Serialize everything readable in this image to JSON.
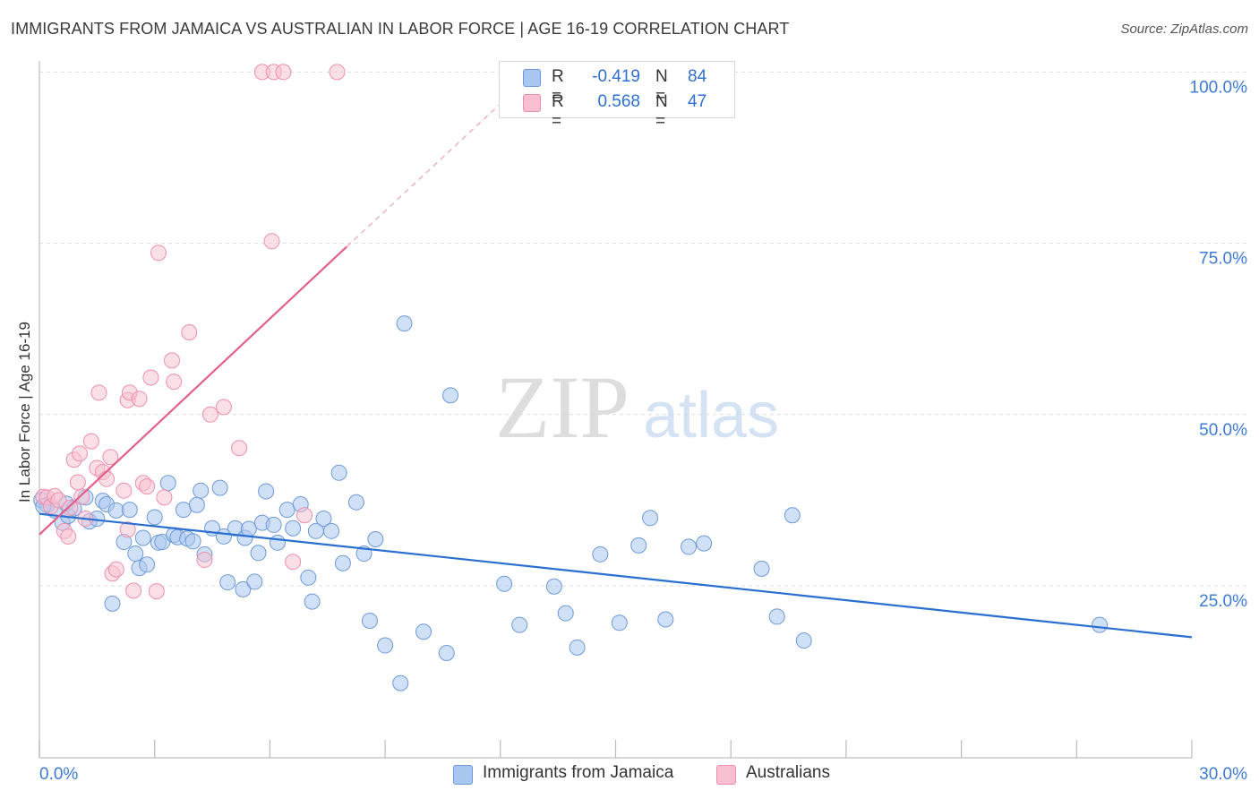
{
  "title": "IMMIGRANTS FROM JAMAICA VS AUSTRALIAN IN LABOR FORCE | AGE 16-19 CORRELATION CHART",
  "source": "Source: ZipAtlas.com",
  "watermark": {
    "zip": "ZIP",
    "atlas": "atlas"
  },
  "legend": {
    "jamaica": {
      "r_label": "R =",
      "r_value": "-0.419",
      "n_label": "N =",
      "n_value": "84"
    },
    "australians": {
      "r_label": "R =",
      "r_value": "0.568",
      "n_label": "N =",
      "n_value": "47"
    }
  },
  "bottom_legend": {
    "jamaica": "Immigrants from Jamaica",
    "australians": "Australians"
  },
  "colors": {
    "jamaica_fill": "#a9c6f0",
    "jamaica_stroke": "#6f9ad8",
    "jamaica_line": "#2a6fcf",
    "aus_fill": "#f7bfd0",
    "aus_stroke": "#ee8fae",
    "aus_line": "#e0608a",
    "tick_text": "#3d7bd6",
    "grid": "#dddddd"
  },
  "chart_data": {
    "type": "scatter",
    "title": "IMMIGRANTS FROM JAMAICA VS AUSTRALIAN IN LABOR FORCE | AGE 16-19 CORRELATION CHART",
    "xlabel": "",
    "ylabel": "In Labor Force | Age 16-19",
    "xlim": [
      0,
      30
    ],
    "ylim": [
      0,
      102
    ],
    "x_tick_labels": [
      {
        "value": 0,
        "label": "0.0%"
      },
      {
        "value": 30,
        "label": "30.0%"
      }
    ],
    "y_tick_labels": [
      {
        "value": 25,
        "label": "25.0%"
      },
      {
        "value": 50,
        "label": "50.0%"
      },
      {
        "value": 75,
        "label": "75.0%"
      },
      {
        "value": 100,
        "label": "100.0%"
      }
    ],
    "grid": "horizontal dashed",
    "legend_placement": "top-center",
    "series": [
      {
        "name": "Immigrants from Jamaica",
        "R": -0.419,
        "N": 84,
        "trend": {
          "x": [
            0,
            30
          ],
          "y": [
            35.5,
            17.5
          ]
        },
        "points": [
          [
            0.05,
            37.5
          ],
          [
            0.2,
            36.8
          ],
          [
            0.4,
            36.0
          ],
          [
            0.6,
            34.2
          ],
          [
            0.7,
            37.0
          ],
          [
            0.75,
            35.2
          ],
          [
            0.9,
            36.3
          ],
          [
            1.2,
            37.9
          ],
          [
            1.3,
            34.4
          ],
          [
            1.5,
            34.8
          ],
          [
            1.65,
            37.4
          ],
          [
            1.75,
            36.9
          ],
          [
            1.9,
            22.4
          ],
          [
            2.0,
            36.0
          ],
          [
            2.2,
            31.4
          ],
          [
            2.35,
            36.1
          ],
          [
            2.5,
            29.7
          ],
          [
            2.6,
            27.6
          ],
          [
            2.7,
            32.0
          ],
          [
            2.8,
            28.1
          ],
          [
            3.0,
            35.0
          ],
          [
            3.1,
            31.3
          ],
          [
            3.2,
            31.4
          ],
          [
            3.35,
            40.0
          ],
          [
            3.5,
            32.4
          ],
          [
            3.6,
            32.1
          ],
          [
            3.75,
            36.1
          ],
          [
            3.85,
            31.9
          ],
          [
            4.0,
            31.5
          ],
          [
            4.1,
            36.8
          ],
          [
            4.2,
            38.9
          ],
          [
            4.3,
            29.6
          ],
          [
            4.5,
            33.4
          ],
          [
            4.7,
            39.3
          ],
          [
            4.8,
            32.2
          ],
          [
            4.9,
            25.5
          ],
          [
            5.1,
            33.4
          ],
          [
            5.3,
            24.5
          ],
          [
            5.35,
            32.0
          ],
          [
            5.45,
            33.3
          ],
          [
            5.6,
            25.6
          ],
          [
            5.7,
            29.8
          ],
          [
            5.8,
            34.2
          ],
          [
            5.9,
            38.8
          ],
          [
            6.1,
            33.9
          ],
          [
            6.2,
            31.3
          ],
          [
            6.45,
            36.1
          ],
          [
            6.6,
            33.4
          ],
          [
            6.8,
            36.9
          ],
          [
            7.0,
            26.2
          ],
          [
            7.1,
            22.7
          ],
          [
            7.2,
            33.0
          ],
          [
            7.4,
            34.8
          ],
          [
            7.6,
            33.0
          ],
          [
            7.8,
            41.5
          ],
          [
            7.9,
            28.3
          ],
          [
            8.25,
            37.2
          ],
          [
            8.45,
            29.7
          ],
          [
            8.6,
            19.9
          ],
          [
            8.75,
            31.8
          ],
          [
            9.0,
            16.3
          ],
          [
            9.4,
            10.8
          ],
          [
            9.5,
            63.3
          ],
          [
            10.0,
            18.3
          ],
          [
            10.6,
            15.2
          ],
          [
            10.7,
            52.8
          ],
          [
            12.1,
            25.3
          ],
          [
            12.5,
            19.3
          ],
          [
            13.4,
            24.9
          ],
          [
            13.7,
            21.0
          ],
          [
            14.0,
            16.0
          ],
          [
            14.6,
            29.6
          ],
          [
            15.1,
            19.6
          ],
          [
            15.6,
            30.9
          ],
          [
            15.9,
            34.9
          ],
          [
            16.3,
            20.1
          ],
          [
            16.9,
            30.7
          ],
          [
            17.3,
            31.2
          ],
          [
            18.8,
            27.5
          ],
          [
            19.2,
            20.5
          ],
          [
            19.6,
            35.3
          ],
          [
            19.9,
            17.0
          ],
          [
            27.6,
            19.3
          ],
          [
            0.1,
            36.6
          ]
        ]
      },
      {
        "name": "Australians",
        "R": 0.568,
        "N": 47,
        "trend": {
          "x": [
            0,
            8
          ],
          "y": [
            32.5,
            74.5
          ]
        },
        "trend_dashed": {
          "x": [
            8,
            12.6
          ],
          "y": [
            74.5,
            98.5
          ]
        },
        "points": [
          [
            0.1,
            38.0
          ],
          [
            0.2,
            37.9
          ],
          [
            0.3,
            36.6
          ],
          [
            0.4,
            38.1
          ],
          [
            0.5,
            37.5
          ],
          [
            0.65,
            33.0
          ],
          [
            0.75,
            32.2
          ],
          [
            0.9,
            43.4
          ],
          [
            1.0,
            40.1
          ],
          [
            1.05,
            44.3
          ],
          [
            1.2,
            34.8
          ],
          [
            1.35,
            46.1
          ],
          [
            1.5,
            42.2
          ],
          [
            1.55,
            53.2
          ],
          [
            1.65,
            41.6
          ],
          [
            1.75,
            40.6
          ],
          [
            1.85,
            43.8
          ],
          [
            1.9,
            26.8
          ],
          [
            2.0,
            27.4
          ],
          [
            2.2,
            38.9
          ],
          [
            2.3,
            33.2
          ],
          [
            2.3,
            52.1
          ],
          [
            2.35,
            53.2
          ],
          [
            2.45,
            24.3
          ],
          [
            2.6,
            52.3
          ],
          [
            2.7,
            40.0
          ],
          [
            2.8,
            39.5
          ],
          [
            2.9,
            55.4
          ],
          [
            3.05,
            24.2
          ],
          [
            3.1,
            73.6
          ],
          [
            3.25,
            37.9
          ],
          [
            3.45,
            57.9
          ],
          [
            3.5,
            54.8
          ],
          [
            3.9,
            62.0
          ],
          [
            4.3,
            28.8
          ],
          [
            4.45,
            50.0
          ],
          [
            4.8,
            51.1
          ],
          [
            5.2,
            45.1
          ],
          [
            5.8,
            100
          ],
          [
            6.05,
            75.3
          ],
          [
            6.1,
            100
          ],
          [
            6.35,
            100
          ],
          [
            6.6,
            28.5
          ],
          [
            6.9,
            35.3
          ],
          [
            7.75,
            100
          ],
          [
            0.8,
            36.4
          ],
          [
            1.1,
            38.0
          ]
        ]
      }
    ]
  }
}
